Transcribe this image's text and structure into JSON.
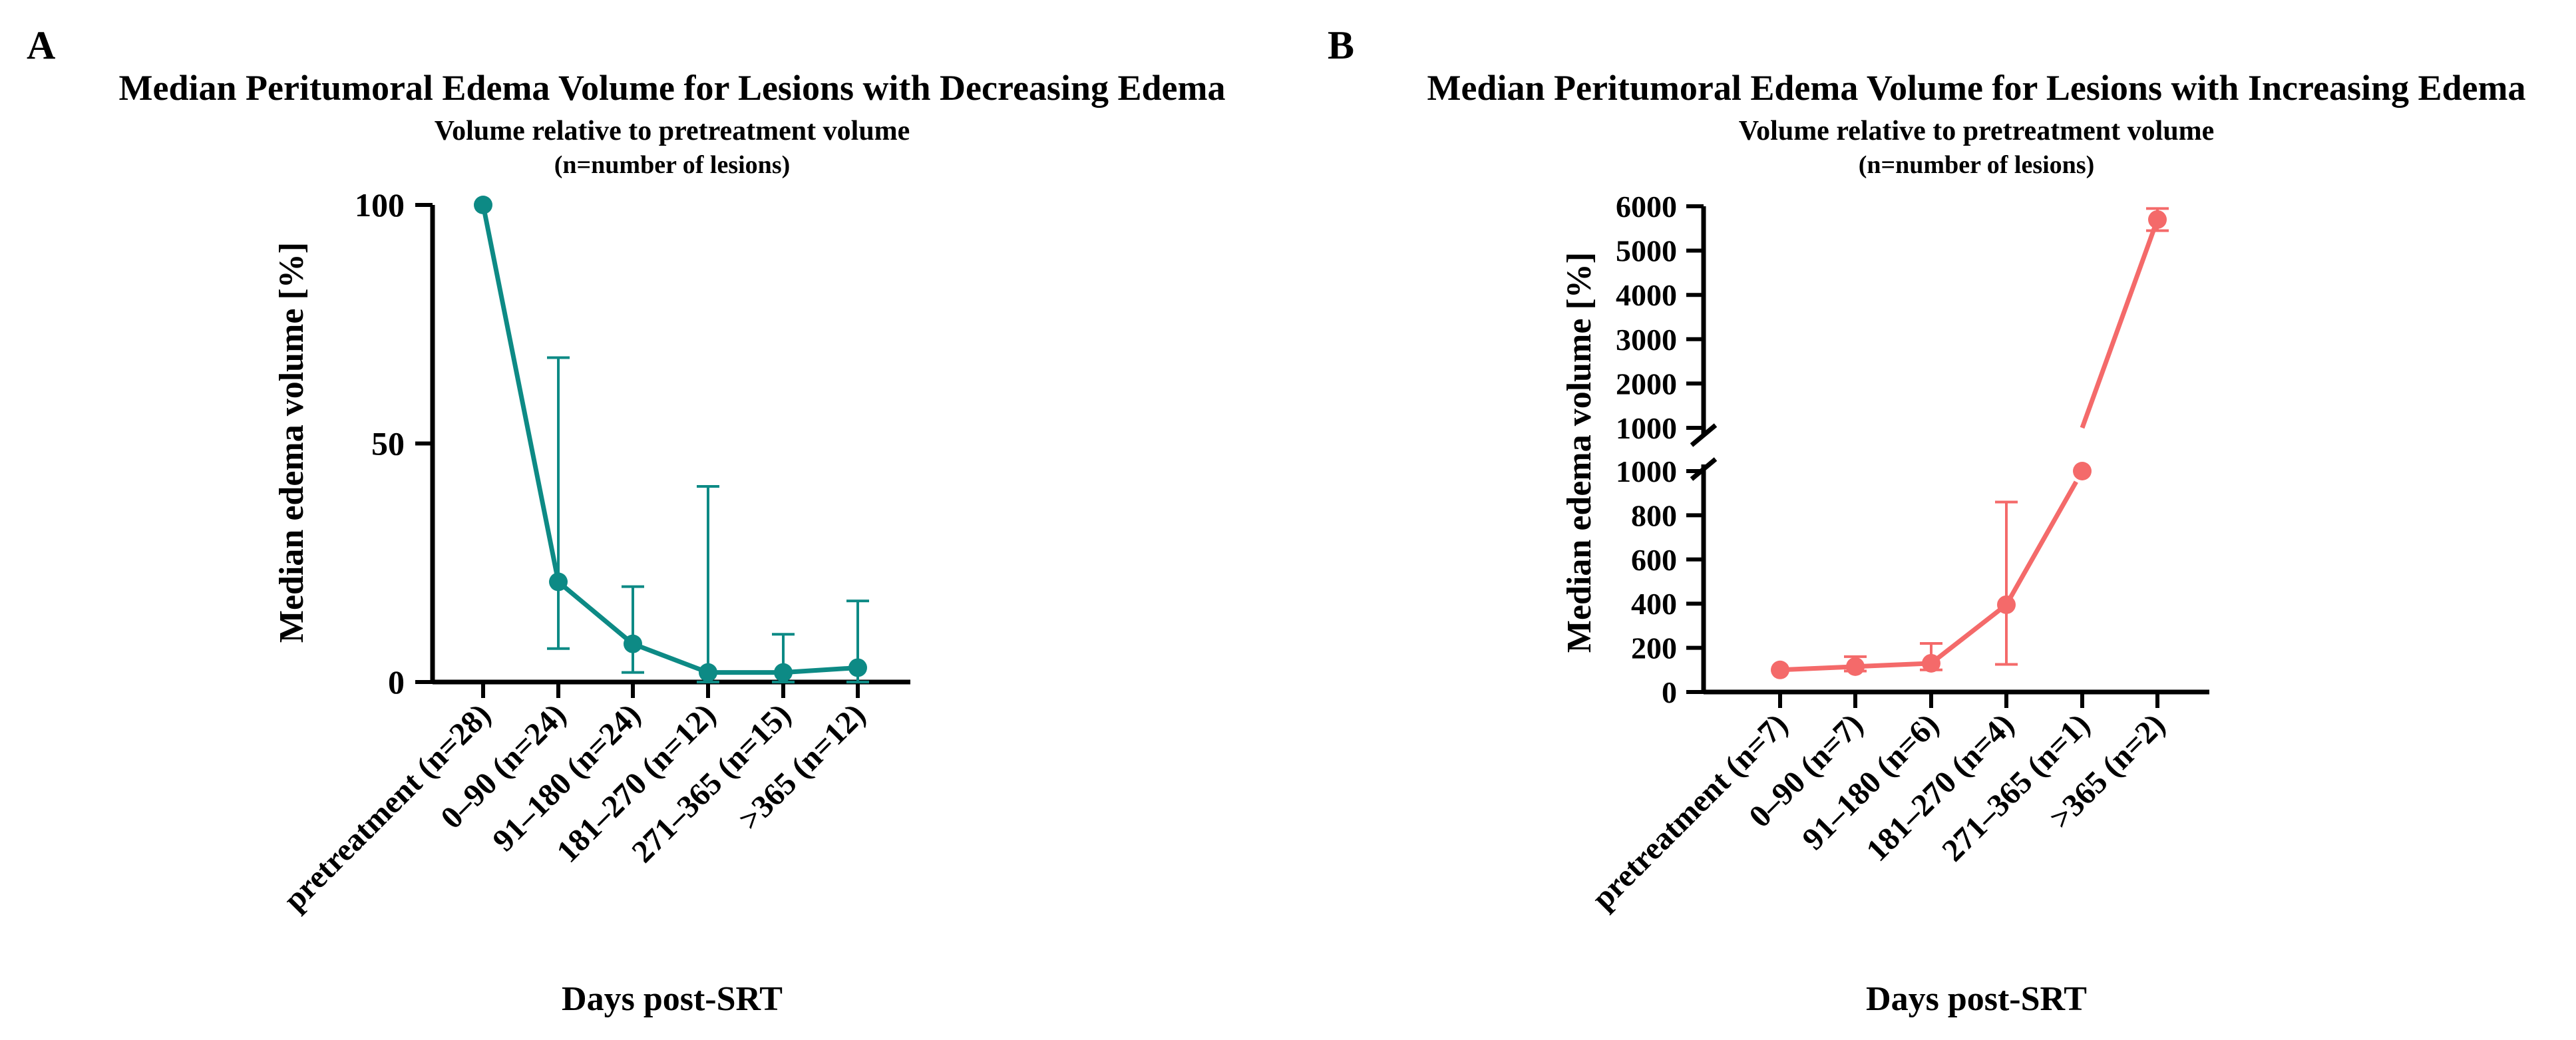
{
  "chart_data": [
    {
      "panel": "A",
      "type": "line",
      "title": "Median Peritumoral Edema Volume for Lesions with Decreasing Edema",
      "subtitle": "Volume relative to pretreatment volume",
      "note": "(n=number of lesions)",
      "xlabel": "Days post-SRT",
      "ylabel": "Median edema volume [%]",
      "categories": [
        "pretreatment (n=28)",
        "0–90 (n=24)",
        "91–180 (n=24)",
        "181–270 (n=12)",
        "271–365 (n=15)",
        ">365 (n=12)"
      ],
      "series": [
        {
          "name": "Decreasing edema",
          "values": [
            100,
            21,
            8,
            2,
            2,
            3
          ],
          "err_low": [
            100,
            7,
            2,
            0,
            0,
            0
          ],
          "err_high": [
            100,
            68,
            20,
            41,
            10,
            17
          ]
        }
      ],
      "ylim": [
        0,
        100
      ],
      "yticks": [
        0,
        50,
        100
      ],
      "color": "#0d8a85"
    },
    {
      "panel": "B",
      "type": "line",
      "title": "Median Peritumoral Edema Volume for Lesions with Increasing Edema",
      "subtitle": "Volume relative to pretreatment volume",
      "note": "(n=number of lesions)",
      "xlabel": "Days post-SRT",
      "ylabel": "Median edema volume [%]",
      "categories": [
        "pretreatment (n=7)",
        "0–90 (n=7)",
        "91–180 (n=6)",
        "181–270 (n=4)",
        "271–365 (n=1)",
        ">365 (n=2)"
      ],
      "series": [
        {
          "name": "Increasing edema",
          "values": [
            100,
            115,
            130,
            395,
            1000,
            5700
          ],
          "err_low": [
            100,
            95,
            100,
            125,
            1000,
            5450
          ],
          "err_high": [
            100,
            160,
            220,
            860,
            1000,
            5950
          ]
        }
      ],
      "y_axis_break": true,
      "ylim_lower": [
        0,
        1000
      ],
      "yticks_lower": [
        0,
        200,
        400,
        600,
        800,
        1000
      ],
      "ylim_upper": [
        1000,
        6000
      ],
      "yticks_upper": [
        1000,
        2000,
        3000,
        4000,
        5000,
        6000
      ],
      "color": "#f46a6a"
    }
  ]
}
